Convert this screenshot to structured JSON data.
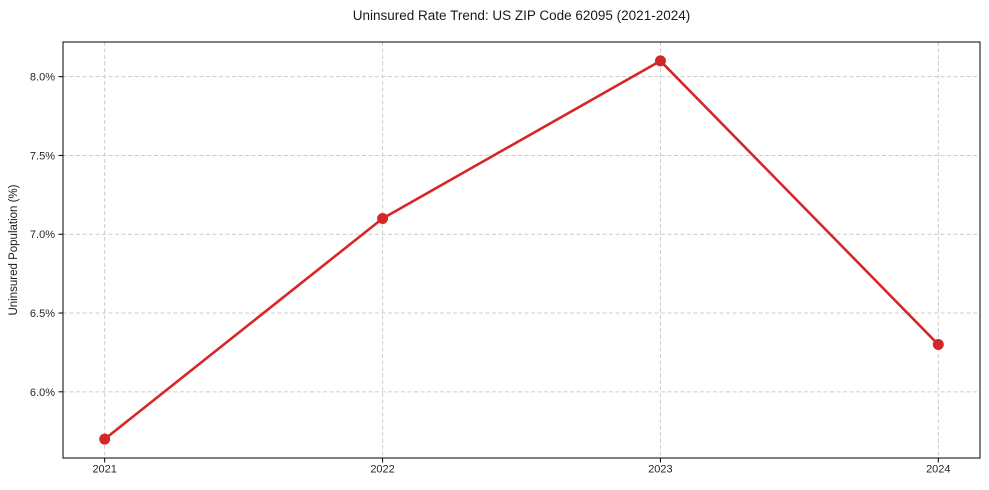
{
  "figure": {
    "background": "#ffffff"
  },
  "chart_data": {
    "type": "line",
    "title": "Uninsured Rate Trend: US ZIP Code 62095 (2021-2024)",
    "xlabel": "",
    "ylabel": "Uninsured Population (%)",
    "x": [
      2021,
      2022,
      2023,
      2024
    ],
    "x_tick_labels": [
      "2021",
      "2022",
      "2023",
      "2024"
    ],
    "values": [
      5.7,
      7.1,
      8.1,
      6.3
    ],
    "y_ticks": [
      6.0,
      6.5,
      7.0,
      7.5,
      8.0
    ],
    "y_tick_labels": [
      "6.0%",
      "6.5%",
      "7.0%",
      "7.5%",
      "8.0%"
    ],
    "xlim": [
      2020.85,
      2024.15
    ],
    "ylim": [
      5.58,
      8.22
    ],
    "grid": true,
    "grid_axes": "both",
    "legend": "none",
    "line_color": "#d62728",
    "marker_color": "#d62728",
    "line_width": 2.6,
    "marker_radius": 5.5,
    "grid_color": "#cccccc",
    "grid_dash": "4 2.5",
    "spine_color": "#000000",
    "tick_label_color": "#262626"
  }
}
